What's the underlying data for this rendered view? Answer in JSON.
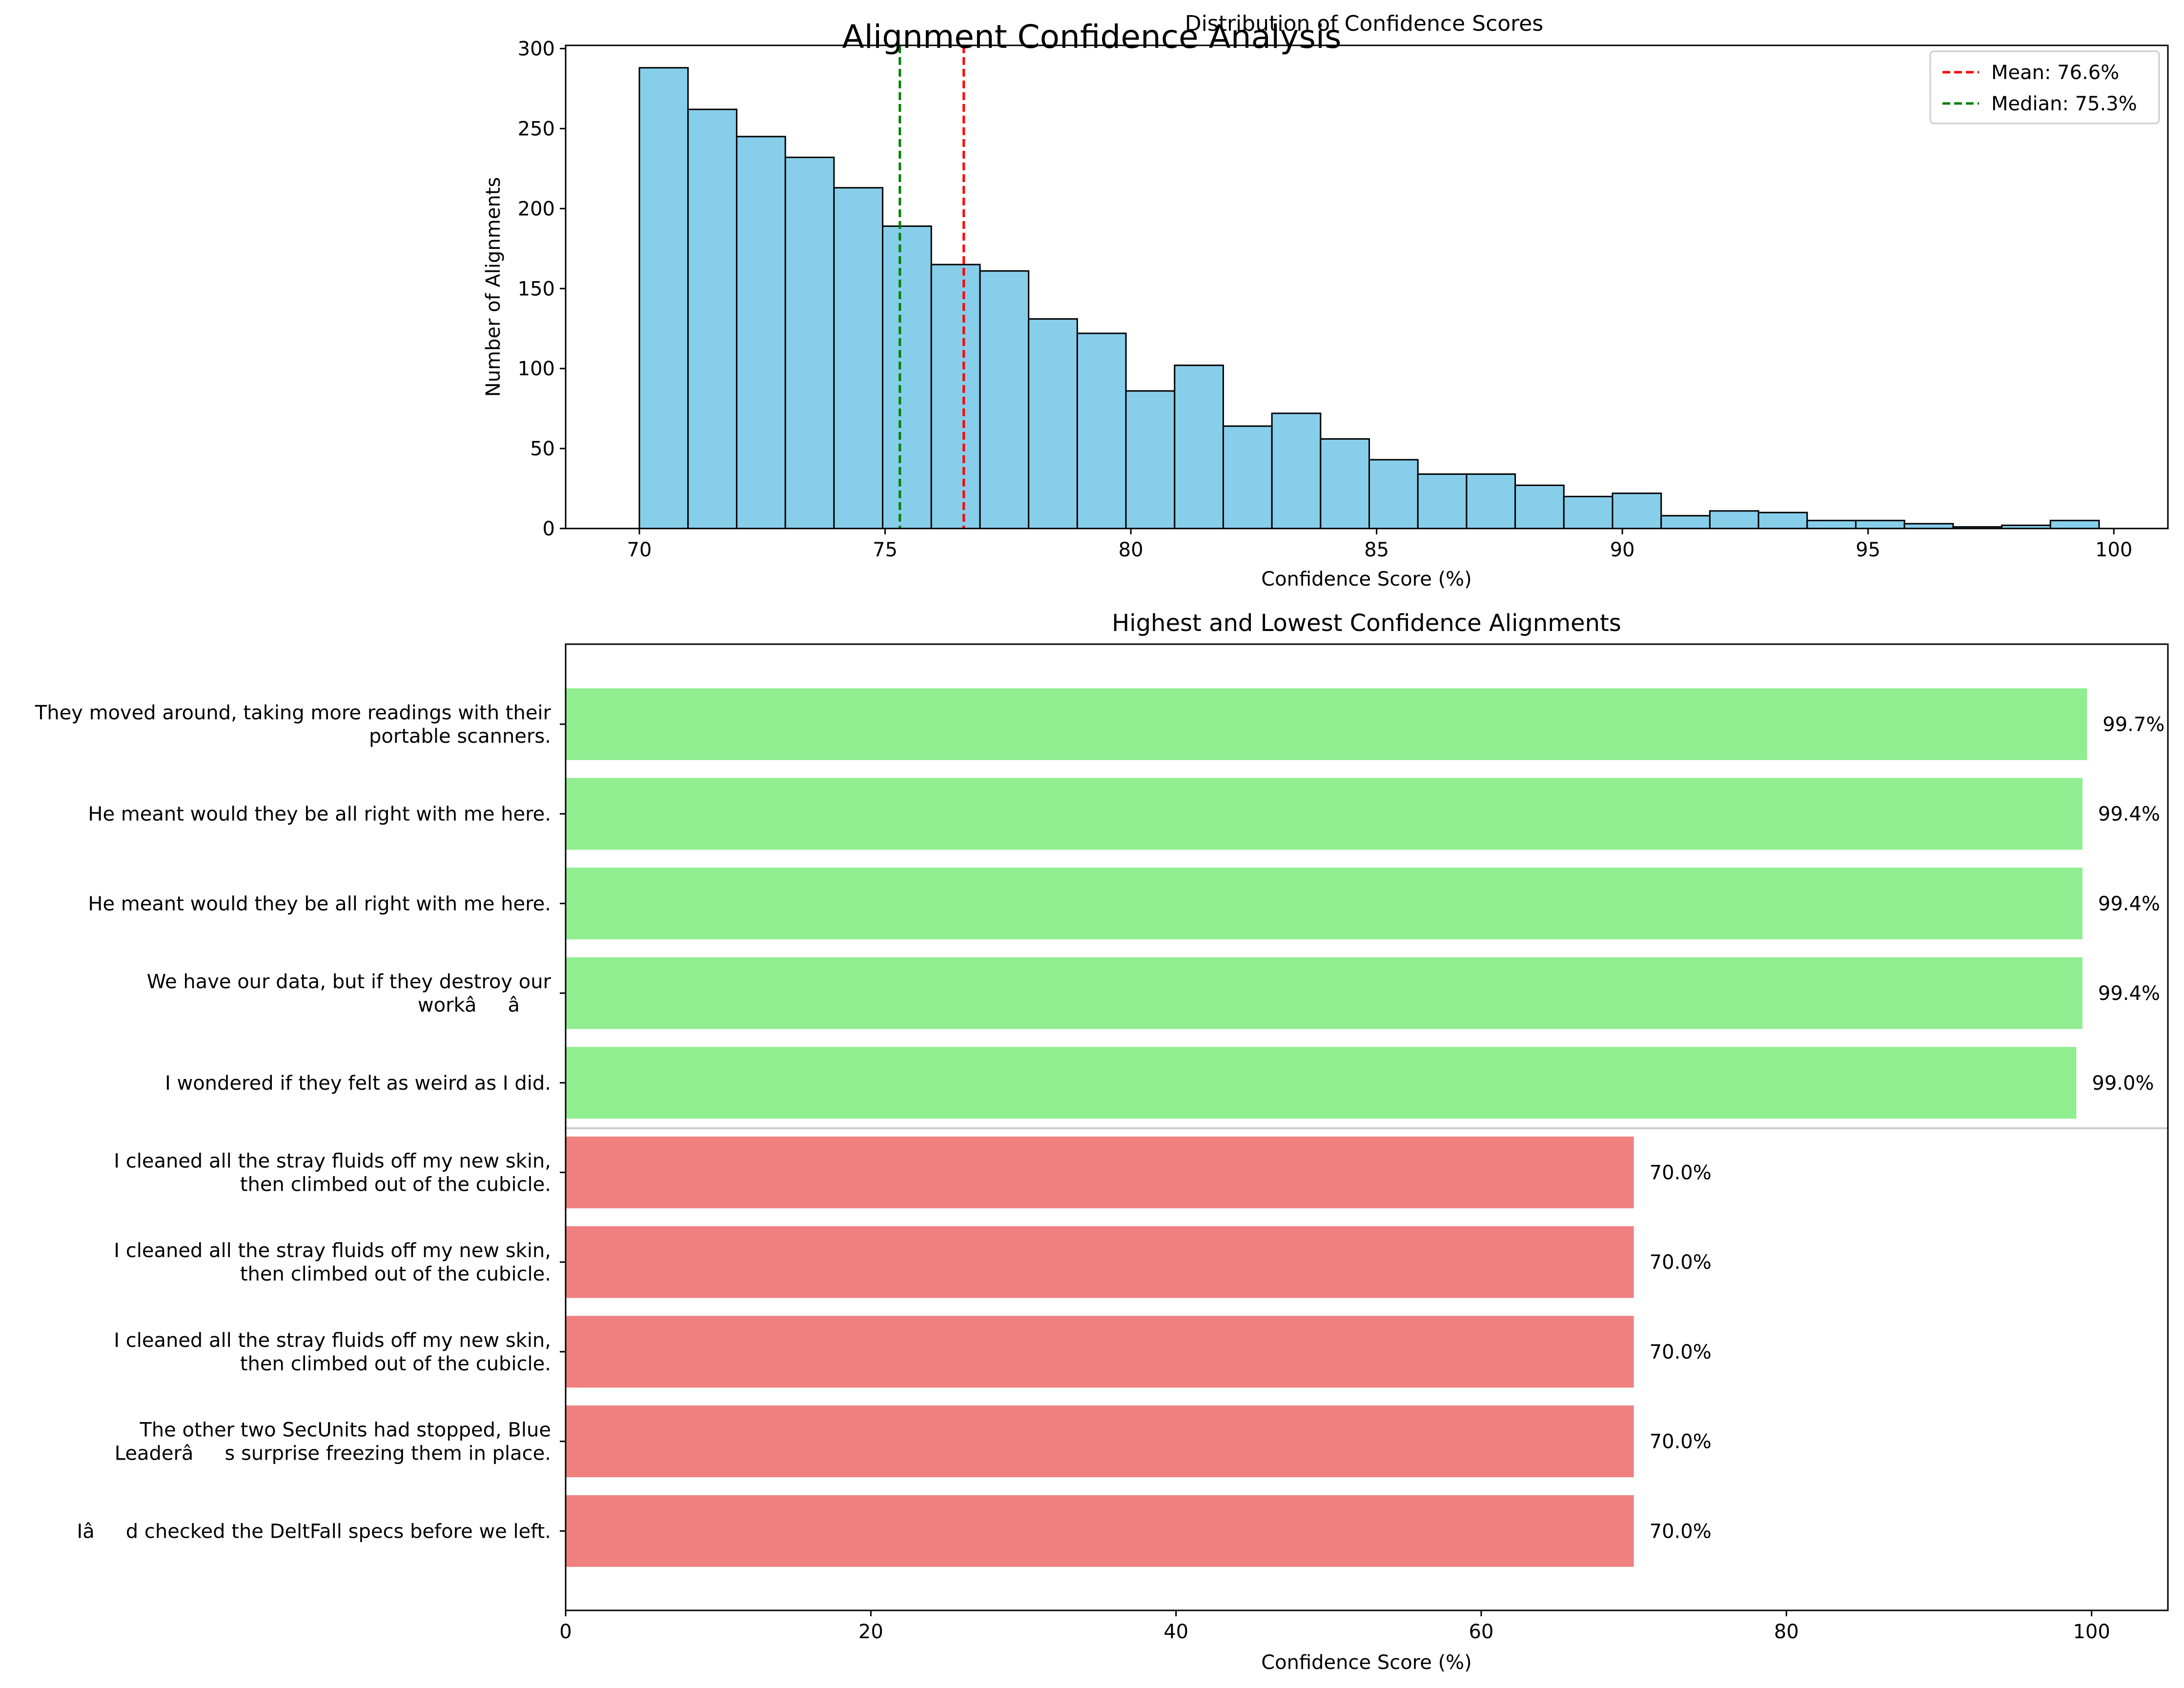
{
  "figure": {
    "suptitle": "Alignment Confidence Analysis"
  },
  "chart_data": [
    {
      "type": "bar",
      "subtype": "histogram",
      "title": "Distribution of Confidence Scores",
      "xlabel": "Confidence Score (%)",
      "ylabel": "Number of Alignments",
      "bin_start": 70.0,
      "bin_width": 0.99,
      "counts": [
        288,
        262,
        245,
        232,
        213,
        189,
        165,
        161,
        131,
        122,
        86,
        102,
        64,
        72,
        56,
        43,
        34,
        34,
        27,
        20,
        22,
        8,
        11,
        10,
        5,
        5,
        3,
        1,
        2,
        5
      ],
      "xlim": [
        68.5,
        101.1
      ],
      "ylim": [
        0,
        302
      ],
      "xticks": [
        70,
        75,
        80,
        85,
        90,
        95,
        100
      ],
      "yticks": [
        0,
        50,
        100,
        150,
        200,
        250,
        300
      ],
      "grid": false,
      "bar_color": "#87CEEB",
      "edge_color": "#000000",
      "reference_lines": [
        {
          "label": "Mean: 76.6%",
          "x": 76.6,
          "color": "#FF0000"
        },
        {
          "label": "Median: 75.3%",
          "x": 75.3,
          "color": "#008000"
        }
      ],
      "legend_placement": "top-right"
    },
    {
      "type": "bar",
      "orientation": "horizontal",
      "title": "Highest and Lowest Confidence Alignments",
      "xlabel": "Confidence Score (%)",
      "xlim": [
        0,
        105
      ],
      "xticks": [
        0,
        20,
        40,
        60,
        80,
        100
      ],
      "grid": false,
      "colors": {
        "high": "#90EE90",
        "low": "#F08080",
        "separator": "#CCCCCC"
      },
      "bars": [
        {
          "label": [
            "They moved around, taking more readings with their",
            "portable scanners."
          ],
          "value": 99.7,
          "value_label": "99.7%",
          "group": "high"
        },
        {
          "label": [
            "He meant would they be all right with me here."
          ],
          "value": 99.4,
          "value_label": "99.4%",
          "group": "high"
        },
        {
          "label": [
            "He meant would they be all right with me here."
          ],
          "value": 99.4,
          "value_label": "99.4%",
          "group": "high"
        },
        {
          "label": [
            "We have our data, but if they destroy our",
            "workââ"
          ],
          "value": 99.4,
          "value_label": "99.4%",
          "group": "high"
        },
        {
          "label": [
            "I wondered if they felt as weird as I did."
          ],
          "value": 99.0,
          "value_label": "99.0%",
          "group": "high"
        },
        {
          "label": [
            "I cleaned all the stray fluids off my new skin,",
            "then climbed out of the cubicle."
          ],
          "value": 70.0,
          "value_label": "70.0%",
          "group": "low"
        },
        {
          "label": [
            "I cleaned all the stray fluids off my new skin,",
            "then climbed out of the cubicle."
          ],
          "value": 70.0,
          "value_label": "70.0%",
          "group": "low"
        },
        {
          "label": [
            "I cleaned all the stray fluids off my new skin,",
            "then climbed out of the cubicle."
          ],
          "value": 70.0,
          "value_label": "70.0%",
          "group": "low"
        },
        {
          "label": [
            "The other two SecUnits had stopped, Blue",
            "Leaderâs surprise freezing them in place."
          ],
          "value": 70.0,
          "value_label": "70.0%",
          "group": "low"
        },
        {
          "label": [
            "Iâd checked the DeltFall specs before we left."
          ],
          "value": 70.0,
          "value_label": "70.0%",
          "group": "low"
        }
      ]
    }
  ]
}
